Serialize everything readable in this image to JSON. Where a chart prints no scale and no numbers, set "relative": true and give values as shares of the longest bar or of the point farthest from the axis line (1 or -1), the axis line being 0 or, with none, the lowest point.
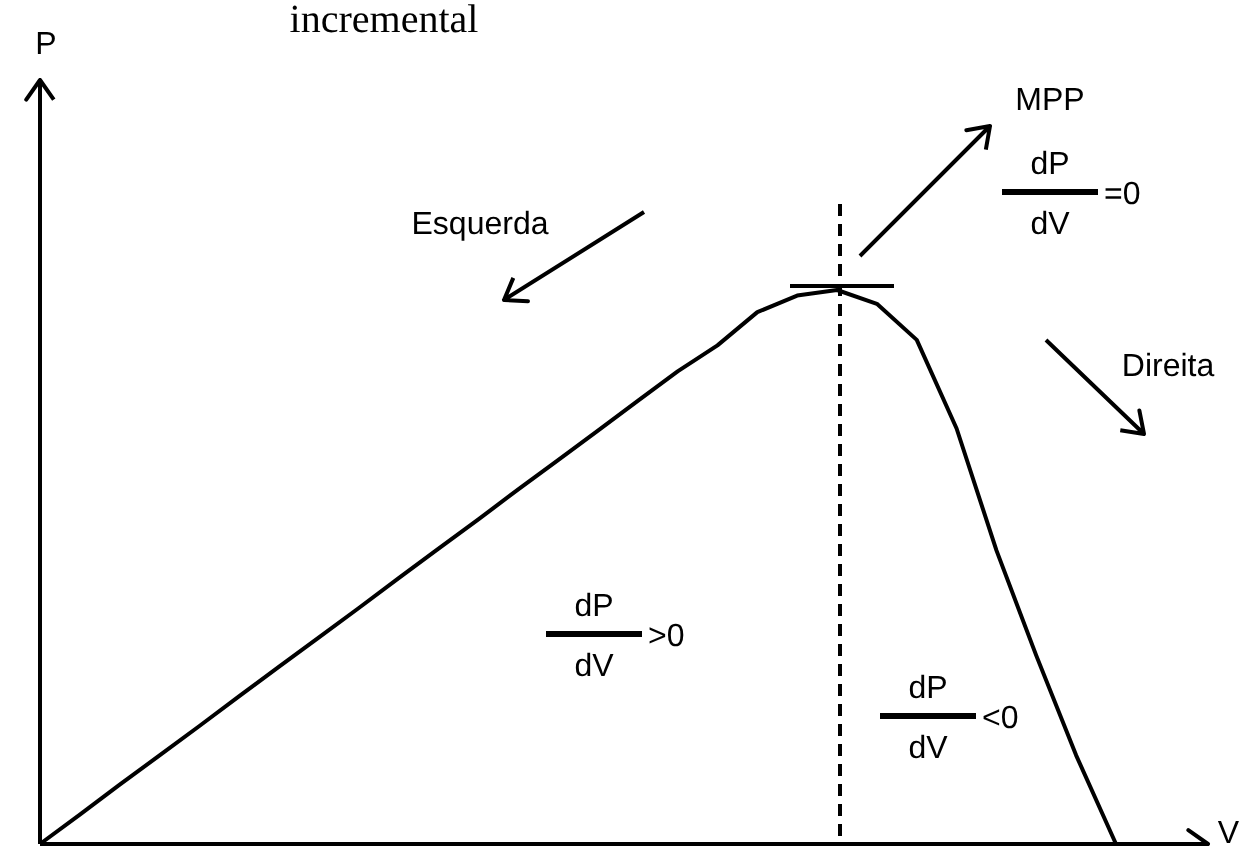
{
  "chart_data": {
    "type": "line",
    "title": "incremental",
    "xlabel": "V",
    "relative": true,
    "marker": "none",
    "line_style": "solid",
    "categories": [
      null,
      null,
      null,
      null,
      null,
      null,
      null,
      null,
      null,
      null,
      null,
      null,
      null,
      null,
      null,
      null,
      null,
      null,
      null,
      null,
      null,
      null,
      null,
      null,
      null,
      null,
      null,
      null
    ],
    "series": [
      {
        "color": "#000000",
        "values": [
          0,
          0.053,
          0.107,
          0.16,
          0.213,
          0.267,
          0.32,
          0.373,
          0.426,
          0.48,
          0.533,
          0.586,
          0.64,
          0.693,
          0.746,
          0.8,
          0.853,
          0.9,
          0.96,
          0.99,
          1.0,
          0.975,
          0.91,
          0.75,
          0.53,
          0.34,
          0.16,
          0
        ]
      }
    ],
    "annotations": [
      "P",
      "Esquerda",
      "Direita",
      "MPP",
      "dP",
      "dV",
      "=0",
      "dP",
      "dV",
      ">0",
      "dP",
      "dV",
      "<0"
    ]
  }
}
